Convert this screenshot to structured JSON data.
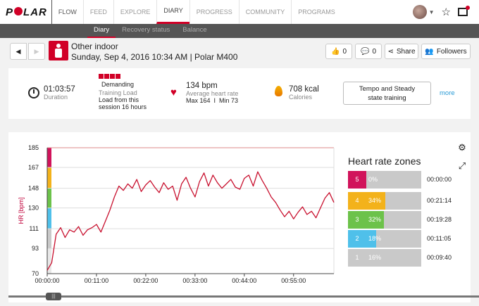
{
  "nav": {
    "logo": "POLAR",
    "items": [
      {
        "label": "FLOW"
      },
      {
        "label": "FEED"
      },
      {
        "label": "EXPLORE"
      },
      {
        "label": "DIARY"
      },
      {
        "label": "PROGRESS"
      },
      {
        "label": "COMMUNITY"
      },
      {
        "label": "PROGRAMS"
      }
    ],
    "active": "DIARY"
  },
  "subnav": {
    "items": [
      {
        "label": "Diary"
      },
      {
        "label": "Recovery status"
      },
      {
        "label": "Balance"
      }
    ],
    "active": "Diary"
  },
  "session": {
    "sport": "Other indoor",
    "date_line": "Sunday, Sep 4, 2016 10:34 AM | Polar M400",
    "likes": "0",
    "comments": "0",
    "share_label": "Share",
    "followers_label": "Followers"
  },
  "summary": {
    "duration_value": "01:03:57",
    "duration_label": "Duration",
    "load_level": "Demanding",
    "load_label": "Training Load",
    "load_desc_1": "Load from this",
    "load_desc_2": "session 16 hours",
    "hr_value": "134 bpm",
    "hr_label": "Average heart rate",
    "hr_range": "Max 164  I  Min 73",
    "kcal_value": "708 kcal",
    "kcal_label": "Calories",
    "target_line1": "Tempo and Steady",
    "target_line2": "state training",
    "more_label": "more"
  },
  "chart_data": {
    "type": "line",
    "ylabel": "HR [bpm]",
    "y_ticks": [
      70,
      93,
      111,
      130,
      148,
      167,
      185
    ],
    "ylim": [
      70,
      185
    ],
    "x_ticks": [
      "00:00:00",
      "00:11:00",
      "00:22:00",
      "00:33:00",
      "00:44:00",
      "00:55:00"
    ],
    "x_tick_minutes": [
      0,
      11,
      22,
      33,
      44,
      55
    ],
    "xlim_minutes": [
      0,
      64
    ],
    "series": [
      {
        "values_min": [
          0,
          1,
          2,
          3,
          4,
          5,
          6,
          7,
          8,
          9,
          10,
          11,
          12,
          13,
          14,
          15,
          16,
          17,
          18,
          19,
          20,
          21,
          22,
          23,
          24,
          25,
          26,
          27,
          28,
          29,
          30,
          31,
          32,
          33,
          34,
          35,
          36,
          37,
          38,
          39,
          40,
          41,
          42,
          43,
          44,
          45,
          46,
          47,
          48,
          49,
          50,
          51,
          52,
          53,
          54,
          55,
          56,
          57,
          58,
          59,
          60,
          61,
          62,
          63,
          64
        ],
        "values_bpm": [
          73,
          80,
          106,
          112,
          103,
          110,
          108,
          113,
          105,
          110,
          112,
          115,
          108,
          118,
          128,
          140,
          150,
          146,
          152,
          148,
          156,
          145,
          151,
          155,
          149,
          144,
          153,
          147,
          150,
          137,
          152,
          158,
          148,
          140,
          154,
          162,
          150,
          160,
          153,
          148,
          152,
          156,
          149,
          147,
          157,
          160,
          150,
          163,
          155,
          148,
          140,
          135,
          128,
          122,
          127,
          120,
          126,
          131,
          124,
          127,
          121,
          130,
          139,
          144,
          135
        ]
      }
    ],
    "zone_band_colors": [
      "#d1135b",
      "#f3b21b",
      "#6cc24a",
      "#4fc0ea",
      "#c9c9c9"
    ]
  },
  "zones": {
    "title": "Heart rate zones",
    "rows": [
      {
        "zone": "5",
        "pct": "0%",
        "fraction": 0.0,
        "time": "00:00:00",
        "color": "#d1135b"
      },
      {
        "zone": "4",
        "pct": "34%",
        "fraction": 0.34,
        "time": "00:21:14",
        "color": "#f3b21b"
      },
      {
        "zone": "3",
        "pct": "32%",
        "fraction": 0.32,
        "time": "00:19:28",
        "color": "#6cc24a"
      },
      {
        "zone": "2",
        "pct": "18%",
        "fraction": 0.18,
        "time": "00:11:05",
        "color": "#4fc0ea"
      },
      {
        "zone": "1",
        "pct": "16%",
        "fraction": 0.16,
        "time": "00:09:40",
        "color": "#c9c9c9"
      }
    ]
  },
  "icons": {
    "settings": "gear-icon",
    "fullscreen": "expand-icon"
  }
}
